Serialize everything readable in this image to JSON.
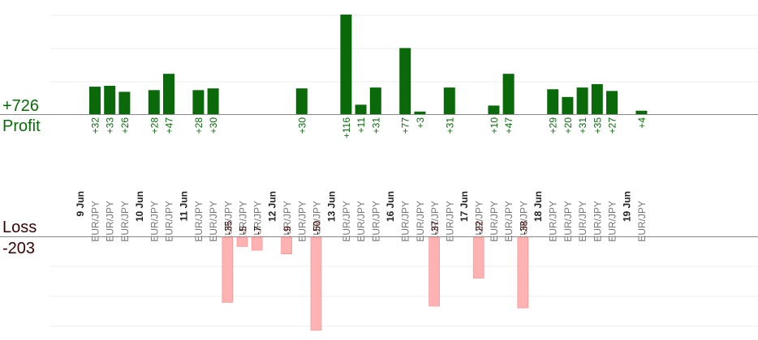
{
  "summary": {
    "profit_total": "+726",
    "profit_label": "Profit",
    "loss_label": "Loss",
    "loss_total": "-203"
  },
  "colors": {
    "profit_bar": "#0a6a0a",
    "profit_text": "#0a6a0a",
    "loss_bar": "#ffb2b2",
    "loss_text": "#3a0000",
    "pair_text": "#777777",
    "date_text": "#222222",
    "grid": "#ececec",
    "axis": "#888888"
  },
  "chart_data": {
    "type": "bar",
    "grid": true,
    "profit_ylim": [
      0,
      116
    ],
    "loss_ylim": [
      0,
      -50
    ],
    "days": [
      {
        "label": "9 Jun",
        "trades": [
          {
            "pair": "EUR/JPY",
            "value": 32
          },
          {
            "pair": "EUR/JPY",
            "value": 33
          },
          {
            "pair": "EUR/JPY",
            "value": 26
          }
        ]
      },
      {
        "label": "10 Jun",
        "trades": [
          {
            "pair": "EUR/JPY",
            "value": 28
          },
          {
            "pair": "EUR/JPY",
            "value": 47
          }
        ]
      },
      {
        "label": "11 Jun",
        "trades": [
          {
            "pair": "EUR/JPY",
            "value": 28
          },
          {
            "pair": "EUR/JPY",
            "value": 30
          },
          {
            "pair": "EUR/JPY",
            "value": -35
          },
          {
            "pair": "EUR/JPY",
            "value": -5
          },
          {
            "pair": "EUR/JPY",
            "value": -7
          }
        ]
      },
      {
        "label": "12 Jun",
        "trades": [
          {
            "pair": "EUR/JPY",
            "value": -9
          },
          {
            "pair": "EUR/JPY",
            "value": 30
          },
          {
            "pair": "EUR/JPY",
            "value": -50
          }
        ]
      },
      {
        "label": "13 Jun",
        "trades": [
          {
            "pair": "EUR/JPY",
            "value": 116
          },
          {
            "pair": "EUR/JPY",
            "value": 11
          },
          {
            "pair": "EUR/JPY",
            "value": 31
          }
        ]
      },
      {
        "label": "16 Jun",
        "trades": [
          {
            "pair": "EUR/JPY",
            "value": 77
          },
          {
            "pair": "EUR/JPY",
            "value": 3
          },
          {
            "pair": "EUR/JPY",
            "value": -37
          },
          {
            "pair": "EUR/JPY",
            "value": 31
          }
        ]
      },
      {
        "label": "17 Jun",
        "trades": [
          {
            "pair": "EUR/JPY",
            "value": -22
          },
          {
            "pair": "EUR/JPY",
            "value": 10
          },
          {
            "pair": "EUR/JPY",
            "value": 47
          },
          {
            "pair": "EUR/JPY",
            "value": -38
          }
        ]
      },
      {
        "label": "18 Jun",
        "trades": [
          {
            "pair": "EUR/JPY",
            "value": 29
          },
          {
            "pair": "EUR/JPY",
            "value": 20
          },
          {
            "pair": "EUR/JPY",
            "value": 31
          },
          {
            "pair": "EUR/JPY",
            "value": 35
          },
          {
            "pair": "EUR/JPY",
            "value": 27
          }
        ]
      },
      {
        "label": "19 Jun",
        "trades": [
          {
            "pair": "EUR/JPY",
            "value": 4
          }
        ]
      }
    ]
  }
}
